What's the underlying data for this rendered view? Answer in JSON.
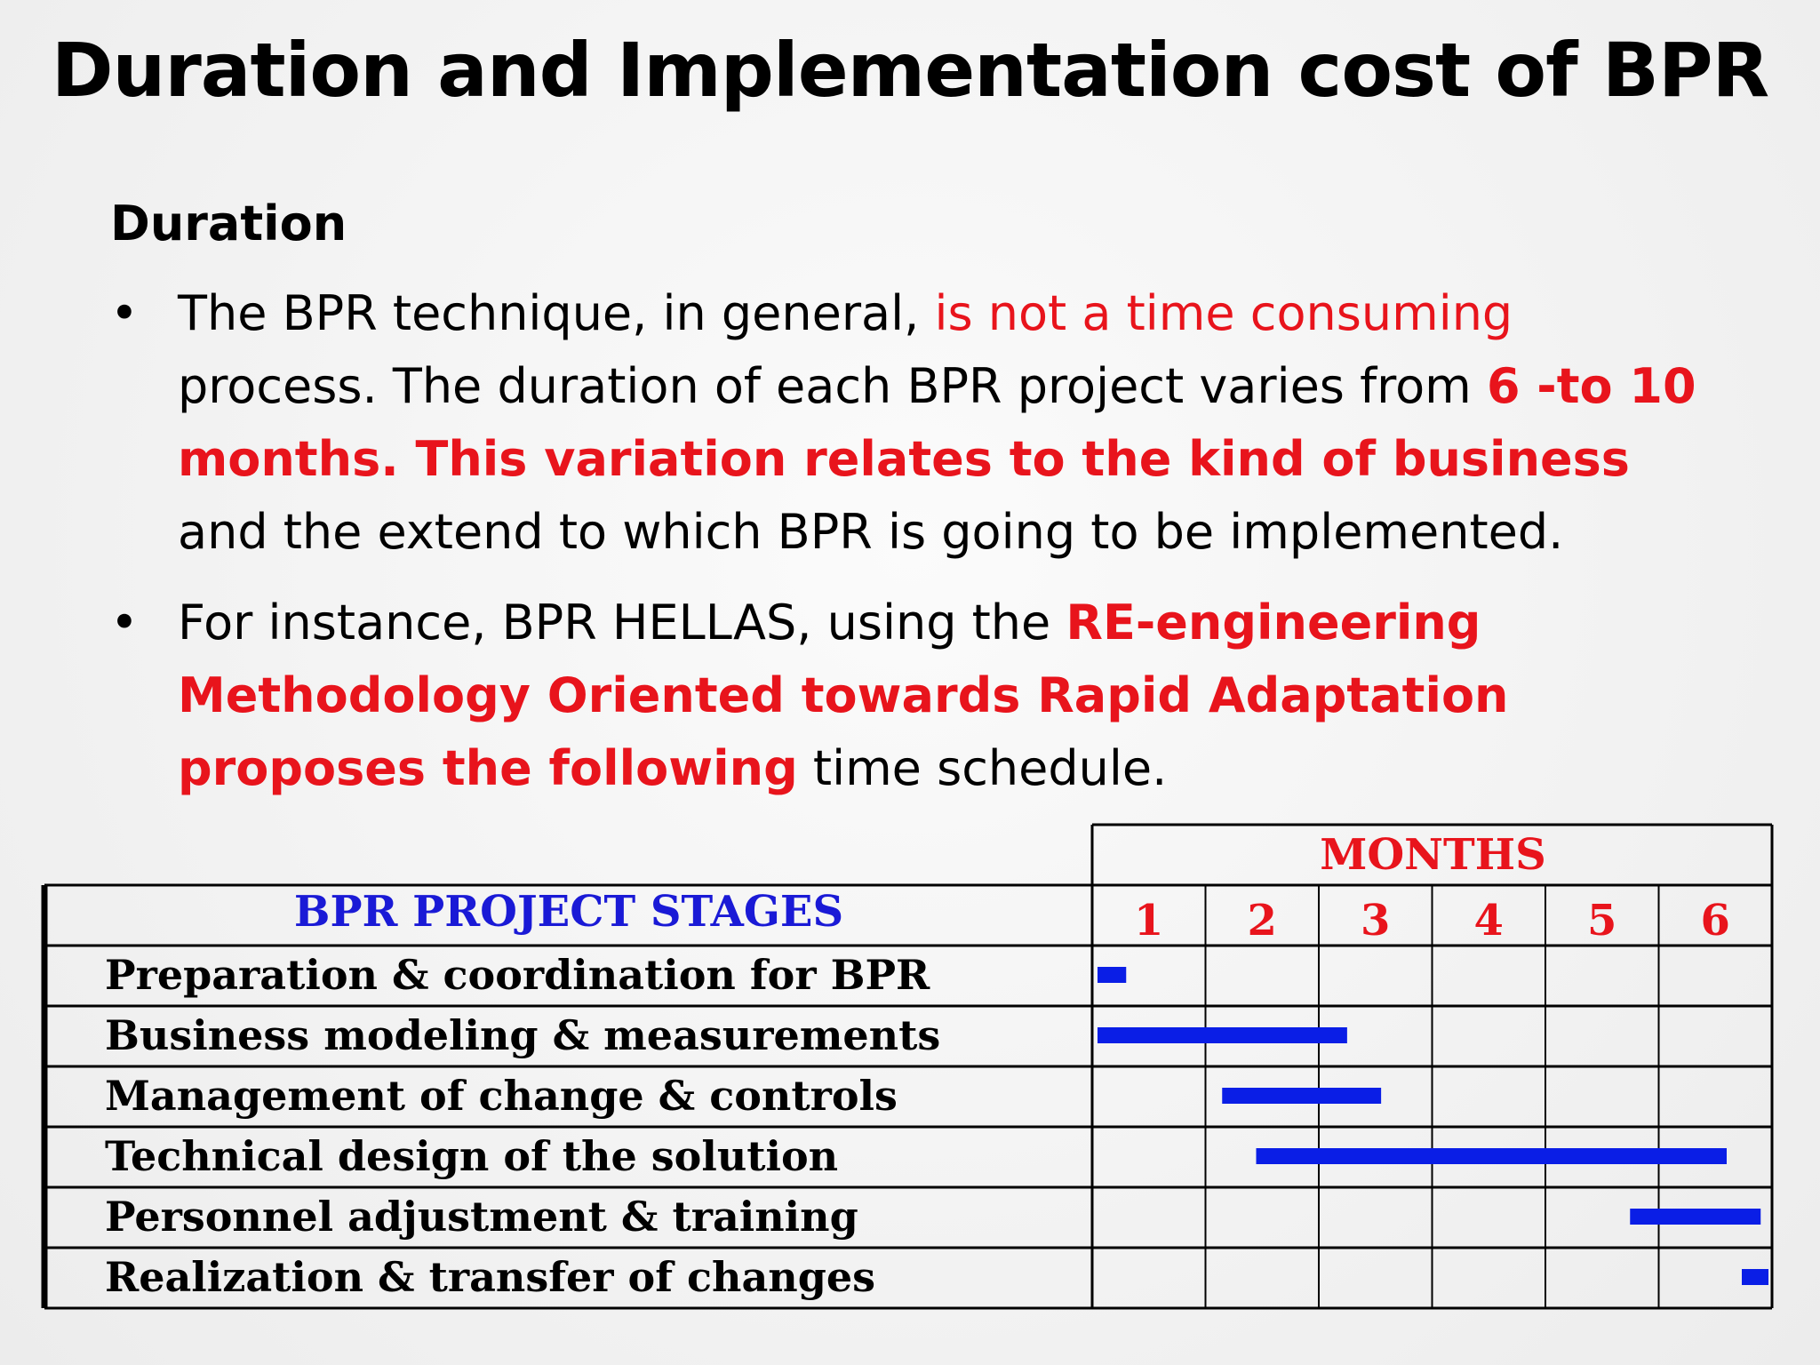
{
  "slide": {
    "title": "Duration and Implementation cost of BPR",
    "section_heading": "Duration",
    "bullet_1": {
      "part_1": "The BPR technique, in general, ",
      "part_2_red": "is not a time consuming",
      "part_3": " process. The duration of each BPR project varies from ",
      "part_4_red_bold": "6 -to 10 months. This variation relates to the kind of business",
      "part_5": " and the extend to which BPR is going to be implemented."
    },
    "bullet_2": {
      "part_1": "For instance, BPR HELLAS, using the ",
      "part_2_red_bold": "RE-engineering Methodology Oriented towards Rapid Adaptation   proposes the following",
      "part_3": " time schedule."
    },
    "bullet_symbol": "•"
  },
  "gantt": {
    "stage_header": "BPR PROJECT STAGES",
    "months_header": "MONTHS",
    "months": [
      "1",
      "2",
      "3",
      "4",
      "5",
      "6"
    ],
    "stages": [
      "Preparation & coordination for BPR",
      "Business modeling & measurements",
      "Management of change & controls",
      "Technical design of the solution",
      "Personnel adjustment & training",
      "Realization & transfer of changes"
    ],
    "bars_in_months": [
      {
        "stage": "Preparation & coordination for BPR",
        "start": 0.0,
        "end": 0.3
      },
      {
        "stage": "Business modeling & measurements",
        "start": 0.0,
        "end": 2.25
      },
      {
        "stage": "Management of change & controls",
        "start": 1.1,
        "end": 2.55
      },
      {
        "stage": "Technical design of the solution",
        "start": 1.4,
        "end": 5.6
      },
      {
        "stage": "Personnel adjustment & training",
        "start": 4.7,
        "end": 5.9
      },
      {
        "stage": "Realization & transfer of changes",
        "start": 6.0,
        "end": 6.3
      }
    ],
    "bar_color": "#0a1ee6",
    "grid_color": "#000000"
  }
}
